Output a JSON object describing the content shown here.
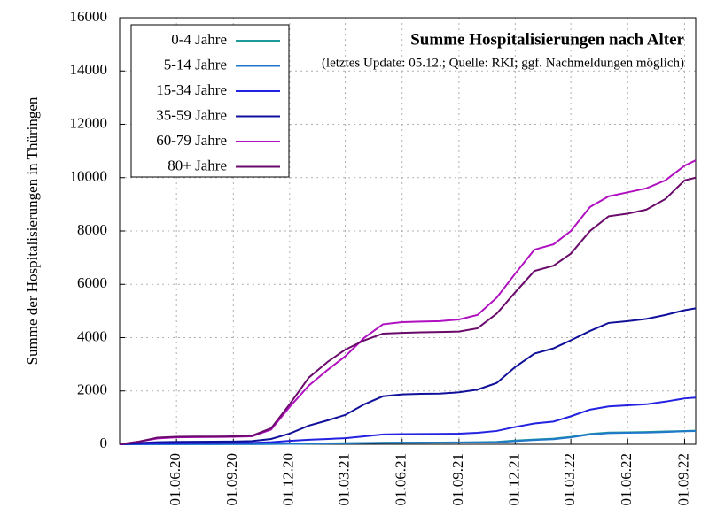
{
  "chart_data": {
    "type": "line",
    "title": "Summe Hospitalisierungen nach Alter",
    "subtitle": "(letztes Update: 05.12.; Quelle: RKI; ggf. Nachmeldungen möglich)",
    "y_label": "Summe der Hospitalisierungen in Thüringen",
    "x": [
      "01.03.20",
      "01.04.20",
      "01.05.20",
      "01.06.20",
      "01.07.20",
      "01.08.20",
      "01.09.20",
      "01.10.20",
      "01.11.20",
      "01.12.20",
      "01.01.21",
      "01.02.21",
      "01.03.21",
      "01.04.21",
      "01.05.21",
      "01.06.21",
      "01.07.21",
      "01.08.21",
      "01.09.21",
      "01.10.21",
      "01.11.21",
      "01.12.21",
      "01.01.22",
      "01.02.22",
      "01.03.22",
      "01.04.22",
      "01.05.22",
      "01.06.22",
      "01.07.22",
      "01.08.22",
      "01.09.22",
      "19.09.22"
    ],
    "xlim": [
      "01.03.20",
      "19.09.22"
    ],
    "xticks": [
      "01.06.20",
      "01.09.20",
      "01.12.20",
      "01.03.21",
      "01.06.21",
      "01.09.21",
      "01.12.21",
      "01.03.22",
      "01.06.22",
      "01.09.22"
    ],
    "ylim": [
      0,
      16000
    ],
    "yticks": [
      0,
      2000,
      4000,
      6000,
      8000,
      10000,
      12000,
      14000,
      16000
    ],
    "grid": true,
    "legend": "upper left",
    "series": [
      {
        "name": "0-4 Jahre",
        "color": "#1f9a9a",
        "values": [
          0,
          3,
          5,
          6,
          7,
          8,
          9,
          10,
          14,
          20,
          28,
          34,
          40,
          50,
          60,
          64,
          66,
          68,
          72,
          78,
          90,
          140,
          180,
          210,
          280,
          390,
          440,
          450,
          460,
          480,
          500,
          510
        ]
      },
      {
        "name": "5-14 Jahre",
        "color": "#1f78c8",
        "values": [
          0,
          2,
          3,
          4,
          5,
          6,
          7,
          8,
          12,
          18,
          25,
          30,
          35,
          45,
          55,
          58,
          60,
          62,
          65,
          70,
          80,
          120,
          160,
          190,
          260,
          370,
          420,
          430,
          440,
          460,
          490,
          500
        ]
      },
      {
        "name": "15-34 Jahre",
        "color": "#2222e0",
        "values": [
          0,
          20,
          30,
          35,
          40,
          45,
          50,
          55,
          80,
          130,
          170,
          200,
          230,
          300,
          370,
          380,
          385,
          390,
          400,
          430,
          500,
          650,
          780,
          850,
          1050,
          1300,
          1420,
          1460,
          1500,
          1600,
          1720,
          1750
        ]
      },
      {
        "name": "35-59 Jahre",
        "color": "#10109a",
        "values": [
          0,
          50,
          80,
          90,
          95,
          100,
          105,
          120,
          200,
          400,
          700,
          900,
          1100,
          1500,
          1800,
          1870,
          1890,
          1900,
          1950,
          2050,
          2300,
          2900,
          3400,
          3600,
          3900,
          4250,
          4550,
          4620,
          4700,
          4850,
          5030,
          5100
        ]
      },
      {
        "name": "60-79 Jahre",
        "color": "#b010c0",
        "values": [
          0,
          100,
          220,
          260,
          270,
          275,
          280,
          300,
          550,
          1400,
          2200,
          2800,
          3300,
          4000,
          4500,
          4580,
          4600,
          4620,
          4680,
          4850,
          5500,
          6400,
          7300,
          7500,
          8000,
          8900,
          9300,
          9450,
          9600,
          9900,
          10450,
          10650
        ]
      },
      {
        "name": "80+ Jahre",
        "color": "#6a0a6a",
        "values": [
          0,
          100,
          250,
          280,
          290,
          290,
          300,
          320,
          600,
          1500,
          2500,
          3100,
          3550,
          3900,
          4150,
          4180,
          4200,
          4210,
          4230,
          4350,
          4900,
          5700,
          6500,
          6700,
          7150,
          8000,
          8550,
          8650,
          8800,
          9200,
          9900,
          10000
        ]
      }
    ]
  }
}
